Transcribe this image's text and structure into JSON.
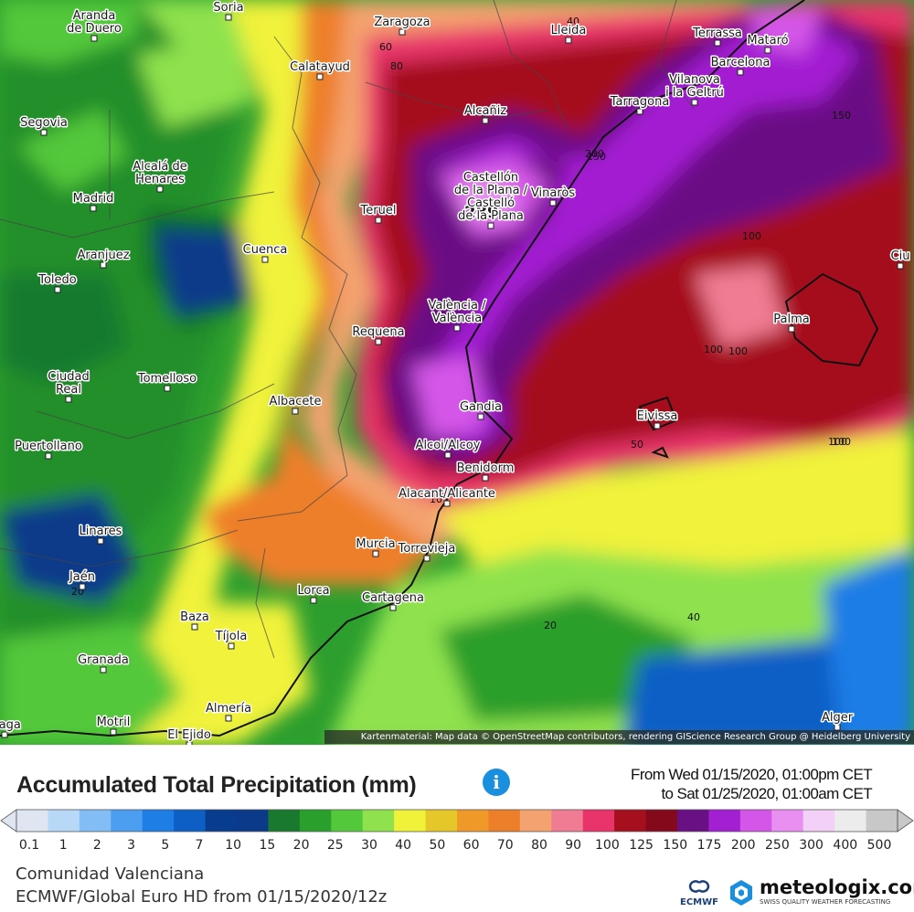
{
  "map": {
    "attribution": "Kartenmaterial: Map data © OpenStreetMap contributors, rendering GIScience Research Group @ Heidelberg University",
    "max_value_label": "289",
    "cities": [
      {
        "name": "Aranda\nde Duero",
        "id": "aranda-de-duero"
      },
      {
        "name": "Soria",
        "id": "soria"
      },
      {
        "name": "Zaragoza",
        "id": "zaragoza"
      },
      {
        "name": "Lleida",
        "id": "lleida"
      },
      {
        "name": "Terrassa",
        "id": "terrassa"
      },
      {
        "name": "Mataró",
        "id": "mataro"
      },
      {
        "name": "Barcelona",
        "id": "barcelona"
      },
      {
        "name": "Calatayud",
        "id": "calatayud"
      },
      {
        "name": "Tarragona",
        "id": "tarragona"
      },
      {
        "name": "Vilanova\ni la Geltrú",
        "id": "vilanova"
      },
      {
        "name": "Alcañiz",
        "id": "alcaniz"
      },
      {
        "name": "Segovia",
        "id": "segovia"
      },
      {
        "name": "Alcalá de\nHenares",
        "id": "alcala"
      },
      {
        "name": "Madrid",
        "id": "madrid"
      },
      {
        "name": "Vinaròs",
        "id": "vinaros"
      },
      {
        "name": "Teruel",
        "id": "teruel"
      },
      {
        "name": "Castellón\nde la Plana /\nCastelló\nde la Plana",
        "id": "castellon"
      },
      {
        "name": "Cuenca",
        "id": "cuenca"
      },
      {
        "name": "Aranjuez",
        "id": "aranjuez"
      },
      {
        "name": "Toledo",
        "id": "toledo"
      },
      {
        "name": "Ciu",
        "id": "ciutadella"
      },
      {
        "name": "Palma",
        "id": "palma"
      },
      {
        "name": "Requena",
        "id": "requena"
      },
      {
        "name": "València /\nValència",
        "id": "valencia"
      },
      {
        "name": "Tomelloso",
        "id": "tomelloso"
      },
      {
        "name": "Ciudad\nReal",
        "id": "ciudad-real"
      },
      {
        "name": "Albacete",
        "id": "albacete"
      },
      {
        "name": "Gandia",
        "id": "gandia"
      },
      {
        "name": "Eivissa",
        "id": "eivissa"
      },
      {
        "name": "Puertollano",
        "id": "puertollano"
      },
      {
        "name": "Alcoi/Alcoy",
        "id": "alcoi"
      },
      {
        "name": "Benidorm",
        "id": "benidorm"
      },
      {
        "name": "Alacant/Alicante",
        "id": "alicante"
      },
      {
        "name": "Linares",
        "id": "linares"
      },
      {
        "name": "Murcia",
        "id": "murcia"
      },
      {
        "name": "Torrevieja",
        "id": "torrevieja"
      },
      {
        "name": "Jaén",
        "id": "jaen"
      },
      {
        "name": "Lorca",
        "id": "lorca"
      },
      {
        "name": "Cartagena",
        "id": "cartagena"
      },
      {
        "name": "Baza",
        "id": "baza"
      },
      {
        "name": "Tíjola",
        "id": "tijola"
      },
      {
        "name": "Granada",
        "id": "granada"
      },
      {
        "name": "Almería",
        "id": "almeria"
      },
      {
        "name": "Motril",
        "id": "motril"
      },
      {
        "name": "álaga",
        "id": "malaga"
      },
      {
        "name": "El Ejido",
        "id": "el-ejido"
      },
      {
        "name": "Alger",
        "id": "alger"
      }
    ],
    "contour_labels": [
      "60",
      "80",
      "40",
      "100",
      "150",
      "100",
      "150",
      "100",
      "100",
      "10",
      "50",
      "100",
      "20",
      "40",
      "20",
      "200"
    ]
  },
  "footer": {
    "title": "Accumulated Total Precipitation (mm)",
    "info_icon": "info-icon",
    "period_from": "From Wed 01/15/2020, 01:00pm CET",
    "period_to": "to Sat 01/25/2020, 01:00am CET",
    "region": "Comunidad Valenciana",
    "model": "ECMWF/Global Euro HD from 01/15/2020/12z",
    "ecmwf_label": "ECMWF",
    "brand_name": "meteologix.com",
    "brand_tagline": "SWISS QUALITY WEATHER FORECASTING"
  },
  "legend": {
    "unit": "mm",
    "labels": [
      "0.1",
      "1",
      "2",
      "3",
      "5",
      "7",
      "10",
      "15",
      "20",
      "25",
      "30",
      "40",
      "50",
      "60",
      "70",
      "80",
      "90",
      "100",
      "125",
      "150",
      "175",
      "200",
      "250",
      "300",
      "400",
      "500"
    ],
    "colors": [
      "#dfe6f2",
      "#b8d8f8",
      "#82bdf5",
      "#4c9ef0",
      "#1f7de6",
      "#0d5fc6",
      "#083c8f",
      "#0b3a8a",
      "#197a2f",
      "#2a9f2c",
      "#52c83a",
      "#8fe24d",
      "#f0f23a",
      "#e6c72a",
      "#ef9a28",
      "#ee7f2a",
      "#f4a370",
      "#f07c93",
      "#e8346a",
      "#a50f1e",
      "#84091a",
      "#6a1085",
      "#a31fd2",
      "#d456e8",
      "#e98ff2",
      "#f3d0f7",
      "#ececec",
      "#c8c8c8"
    ]
  }
}
